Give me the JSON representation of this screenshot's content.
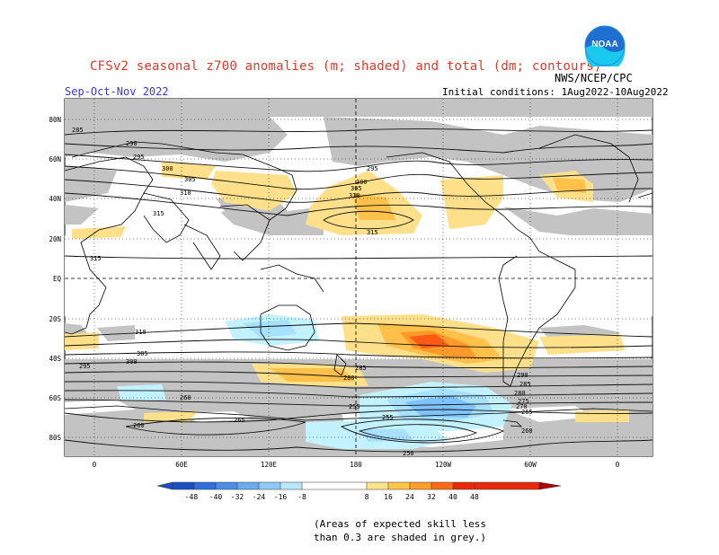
{
  "header": {
    "title": "CFSv2 seasonal z700 anomalies (m; shaded) and total (dm; contours)",
    "agency": "NWS/NCEP/CPC",
    "season": "Sep-Oct-Nov 2022",
    "initial_conditions": "Initial conditions: 1Aug2022-10Aug2022",
    "logo_text": "NOAA"
  },
  "map": {
    "lat_labels": [
      "80N",
      "60N",
      "40N",
      "20N",
      "EQ",
      "20S",
      "40S",
      "60S",
      "80S"
    ],
    "lon_labels": [
      "0",
      "60E",
      "120E",
      "180",
      "120W",
      "60W",
      "0"
    ],
    "contour_labels": [
      "285",
      "290",
      "295",
      "300",
      "305",
      "310",
      "315",
      "315",
      "310",
      "305",
      "300",
      "295",
      "260",
      "255",
      "260",
      "265",
      "280",
      "285",
      "315",
      "310",
      "305",
      "300",
      "295",
      "290",
      "285",
      "280",
      "275",
      "270",
      "265",
      "260",
      "255",
      "250"
    ],
    "colors": {
      "grey_skill": "#c0c0c0",
      "neg_light": "#c3f2ff",
      "neg_med": "#a8e0ff",
      "neg_strong": "#7ec3ff",
      "neg_deep": "#4a9be8",
      "pos_light": "#ffe08a",
      "pos_med": "#ffc14a",
      "pos_strong": "#ff9a2a",
      "pos_deep": "#ff5a14"
    }
  },
  "colorbar": {
    "tick_labels": [
      "-48",
      "-40",
      "-32",
      "-24",
      "-16",
      "-8",
      "8",
      "16",
      "24",
      "32",
      "40",
      "48"
    ],
    "colors": [
      "#1d4fc4",
      "#2f6fdc",
      "#4a8ee8",
      "#6aaaf0",
      "#8fcaf6",
      "#b9e8fb",
      "#ffffff",
      "#ffe58a",
      "#ffc64a",
      "#ff9e2a",
      "#ff6a14",
      "#e82a0a",
      "#b00000"
    ]
  },
  "note": {
    "line1": "(Areas of expected skill less",
    "line2": "than 0.3 are shaded in grey.)"
  }
}
